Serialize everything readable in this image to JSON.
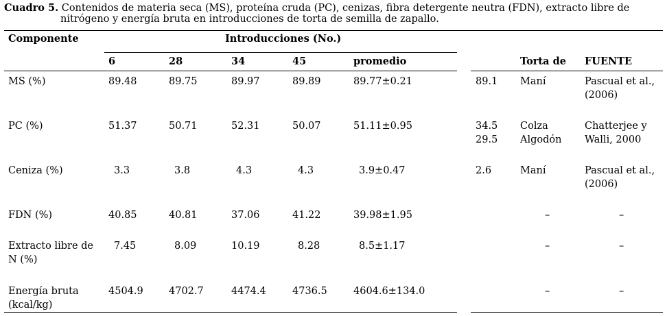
{
  "caption": {
    "label": "Cuadro 5.",
    "line1": "Contenidos de materia seca (MS), proteína cruda (PC), cenizas, fibra detergente neutra (FDN), extracto libre de",
    "line2": "nitrógeno y energía bruta en introducciones de torta de semilla de zapallo."
  },
  "table": {
    "header": {
      "componente": "Componente",
      "introducciones": "Introducciones (No.)",
      "cols": [
        "6",
        "28",
        "34",
        "45",
        "promedio"
      ],
      "torta_de": "Torta de",
      "fuente": "FUENTE"
    },
    "rows": [
      {
        "componente": "MS (%)",
        "values": [
          "89.48",
          "89.75",
          "89.97",
          "89.89",
          "89.77±0.21"
        ],
        "ref_value": "89.1",
        "ref_value2": "",
        "torta": "Maní",
        "torta2": "",
        "fuente": "Pascual et al., (2006)"
      },
      {
        "componente": "PC (%)",
        "values": [
          "51.37",
          "50.71",
          "52.31",
          "50.07",
          "51.11±0.95"
        ],
        "ref_value": "34.5",
        "ref_value2": "29.5",
        "torta": "Colza",
        "torta2": "Algodón",
        "fuente": "Chatterjee y Walli, 2000"
      },
      {
        "componente": "Ceniza (%)",
        "values": [
          "3.3",
          "3.8",
          "4.3",
          "4.3",
          "3.9±0.47"
        ],
        "ref_value": "2.6",
        "ref_value2": "",
        "torta": "Maní",
        "torta2": "",
        "fuente": "Pascual et al., (2006)"
      },
      {
        "componente": "FDN (%)",
        "values": [
          "40.85",
          "40.81",
          "37.06",
          "41.22",
          "39.98±1.95"
        ],
        "ref_value": "",
        "ref_value2": "",
        "torta": "–",
        "torta2": "",
        "fuente": "–"
      },
      {
        "componente": "Extracto libre de N (%)",
        "values": [
          "7.45",
          "8.09",
          "10.19",
          "8.28",
          "8.5±1.17"
        ],
        "ref_value": "",
        "ref_value2": "",
        "torta": "–",
        "torta2": "",
        "fuente": "–"
      },
      {
        "componente": "Energía bruta (kcal/kg)",
        "values": [
          "4504.9",
          "4702.7",
          "4474.4",
          "4736.5",
          "4604.6±134.0"
        ],
        "ref_value": "",
        "ref_value2": "",
        "torta": "–",
        "torta2": "",
        "fuente": "–"
      }
    ]
  }
}
